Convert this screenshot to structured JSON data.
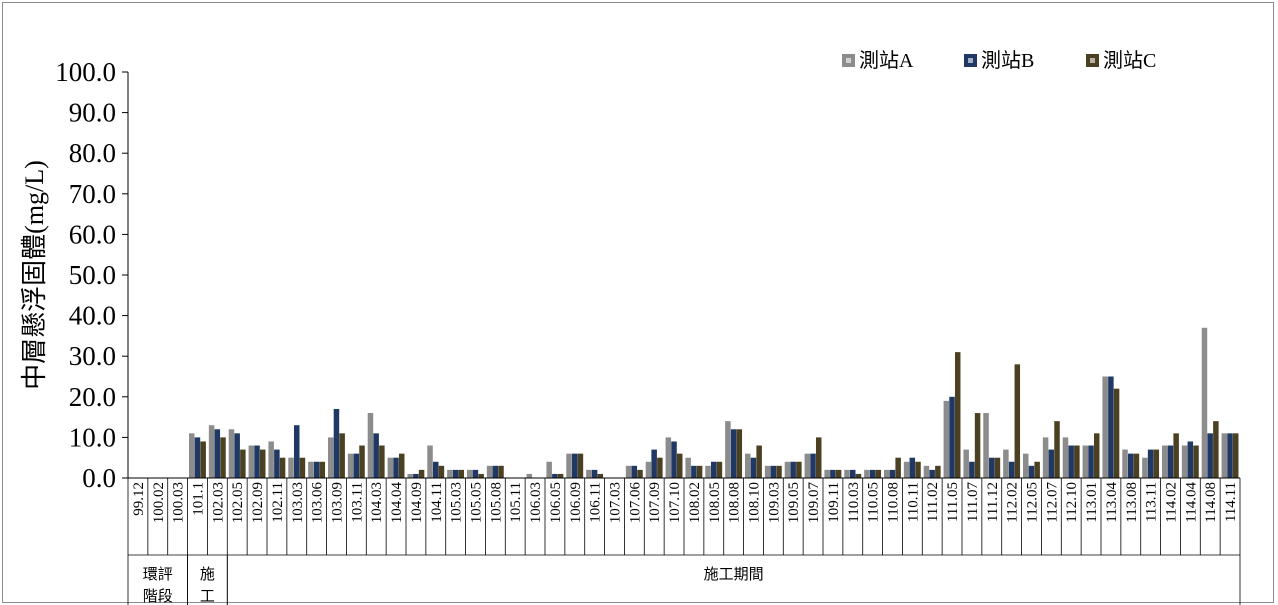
{
  "chart_data": {
    "type": "bar",
    "ylabel": "中層懸浮固體(mg/L)",
    "ylim": [
      0,
      100
    ],
    "yticks": [
      "100.0",
      "90.0",
      "80.0",
      "70.0",
      "60.0",
      "50.0",
      "40.0",
      "30.0",
      "20.0",
      "10.0",
      "0.0"
    ],
    "grid": false,
    "legend_position": "top-right",
    "categories": [
      "99.12",
      "100.02",
      "100.03",
      "101.1",
      "102.03",
      "102.05",
      "102.09",
      "102.11",
      "103.03",
      "103.06",
      "103.09",
      "103.11",
      "104.03",
      "104.04",
      "104.09",
      "104.11",
      "105.03",
      "105.05",
      "105.08",
      "105.11",
      "106.03",
      "106.05",
      "106.09",
      "106.11",
      "107.03",
      "107.06",
      "107.09",
      "107.10",
      "108.02",
      "108.05",
      "108.08",
      "108.10",
      "109.03",
      "109.05",
      "109.07",
      "109.11",
      "110.03",
      "110.05",
      "110.08",
      "110.11",
      "111.02",
      "111.05",
      "111.07",
      "111.12",
      "112.02",
      "112.05",
      "112.07",
      "112.10",
      "113.01",
      "113.04",
      "113.08",
      "113.11",
      "114.02",
      "114.04",
      "114.08",
      "114.11"
    ],
    "series": [
      {
        "name": "測站A",
        "color": "#8c8c8c",
        "values": [
          0,
          0,
          0,
          11,
          13,
          12,
          8,
          9,
          5,
          4,
          10,
          6,
          16,
          5,
          1,
          8,
          2,
          2,
          3,
          0,
          1,
          4,
          6,
          2,
          0,
          3,
          4,
          10,
          5,
          3,
          14,
          6,
          3,
          4,
          6,
          2,
          2,
          2,
          2,
          4,
          3,
          19,
          7,
          16,
          7,
          6,
          10,
          10,
          8,
          25,
          7,
          5,
          8,
          8,
          37,
          11
        ]
      },
      {
        "name": "測站B",
        "color": "#1f3864",
        "values": [
          0,
          0,
          0,
          10,
          12,
          11,
          8,
          7,
          13,
          4,
          17,
          6,
          11,
          5,
          1,
          4,
          2,
          2,
          3,
          0,
          0,
          1,
          6,
          2,
          0,
          3,
          7,
          9,
          3,
          4,
          12,
          5,
          3,
          4,
          6,
          2,
          2,
          2,
          2,
          5,
          2,
          20,
          4,
          5,
          4,
          3,
          7,
          8,
          8,
          25,
          6,
          7,
          8,
          9,
          11,
          11
        ]
      },
      {
        "name": "測站C",
        "color": "#4b4022",
        "values": [
          0,
          0,
          0,
          9,
          10,
          7,
          7,
          5,
          5,
          4,
          11,
          8,
          8,
          6,
          2,
          3,
          2,
          1,
          3,
          0,
          0,
          1,
          6,
          1,
          0,
          2,
          5,
          6,
          3,
          4,
          12,
          8,
          3,
          4,
          10,
          2,
          1,
          2,
          5,
          4,
          3,
          31,
          16,
          5,
          28,
          4,
          14,
          8,
          11,
          22,
          6,
          7,
          11,
          8,
          14,
          11
        ]
      }
    ],
    "groups": [
      {
        "label_lines": [
          "環評",
          "階段"
        ],
        "start": 0,
        "count": 3
      },
      {
        "label_lines": [
          "施",
          "工"
        ],
        "start": 3,
        "count": 2
      },
      {
        "label_lines": [
          "施工期間"
        ],
        "start": 5,
        "count": 51
      }
    ]
  }
}
